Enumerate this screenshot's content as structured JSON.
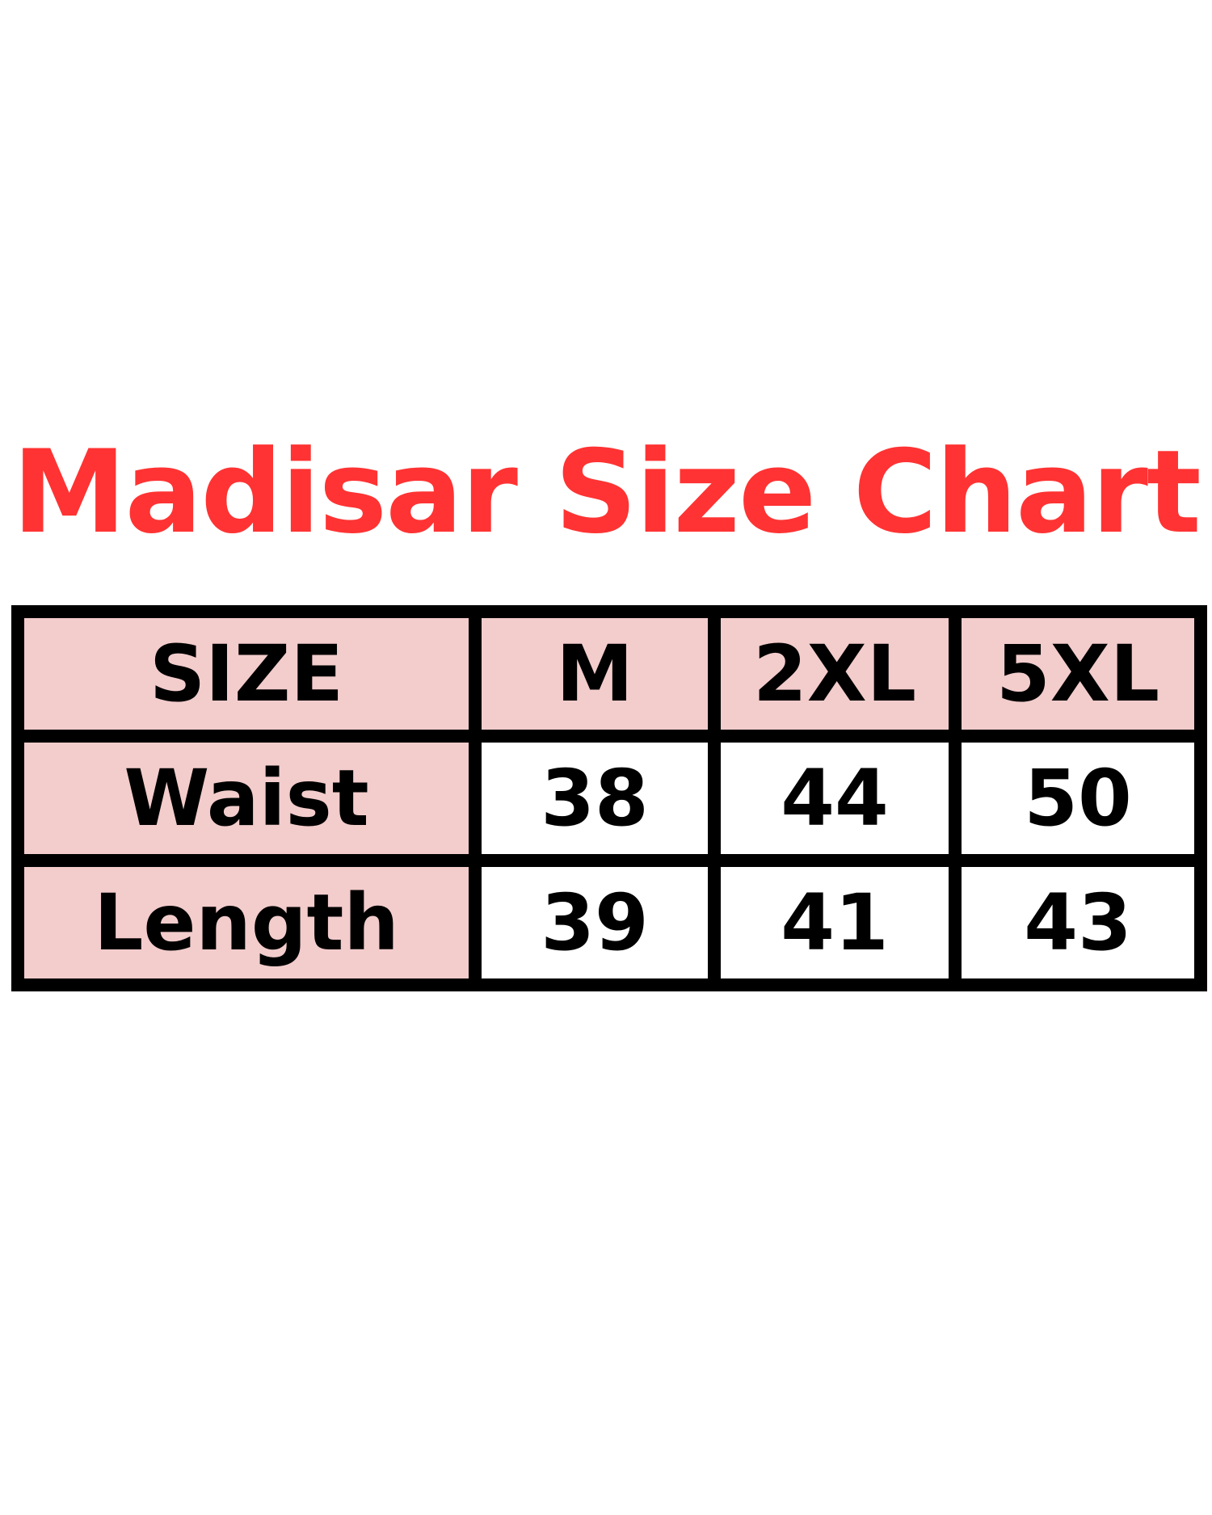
{
  "title": "Madisar Size Chart",
  "colors": {
    "title": "#ff3333",
    "header_fill": "#f3cccc",
    "border": "#000000"
  },
  "table": {
    "header": [
      "SIZE",
      "M",
      "2XL",
      "5XL"
    ],
    "rows": [
      {
        "label": "Waist",
        "values": [
          "38",
          "44",
          "50"
        ]
      },
      {
        "label": "Length",
        "values": [
          "39",
          "41",
          "43"
        ]
      }
    ]
  }
}
